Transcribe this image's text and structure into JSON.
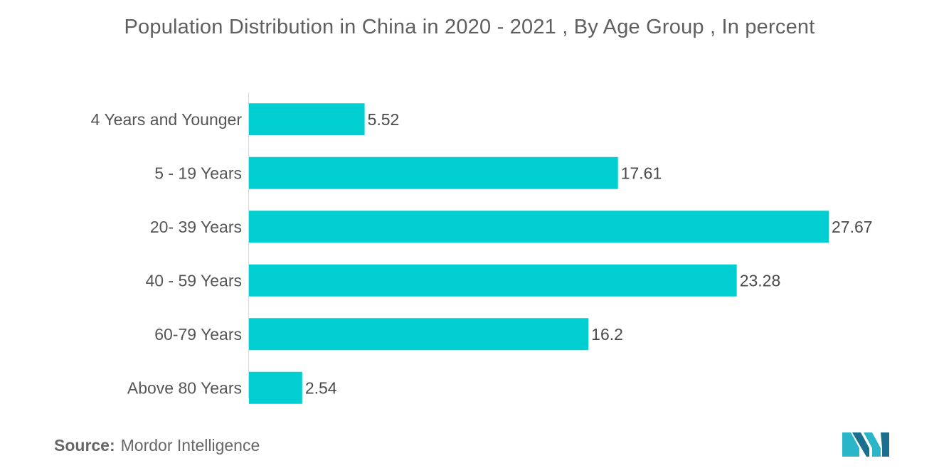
{
  "chart_data": {
    "type": "bar",
    "orientation": "horizontal",
    "title": "Population Distribution in China in 2020 - 2021 , By Age Group , In percent",
    "categories": [
      "4 Years and Younger",
      "5 - 19 Years",
      "20- 39 Years",
      "40 - 59 Years",
      "60-79 Years",
      "Above 80 Years"
    ],
    "values": [
      5.52,
      17.61,
      27.67,
      23.28,
      16.2,
      2.54
    ],
    "value_labels": [
      "5.52",
      "17.61",
      "27.67",
      "23.28",
      "16.2",
      "2.54"
    ],
    "xlim": [
      0,
      27.67
    ],
    "grid": false,
    "legend": "none",
    "bar_color": "#00CED1"
  },
  "source": {
    "label": "Source:",
    "text": "Mordor Intelligence"
  },
  "logo": {
    "icon": "mordor-intelligence-logo",
    "colors": [
      "#2bb5c8",
      "#1a6e8e"
    ]
  }
}
